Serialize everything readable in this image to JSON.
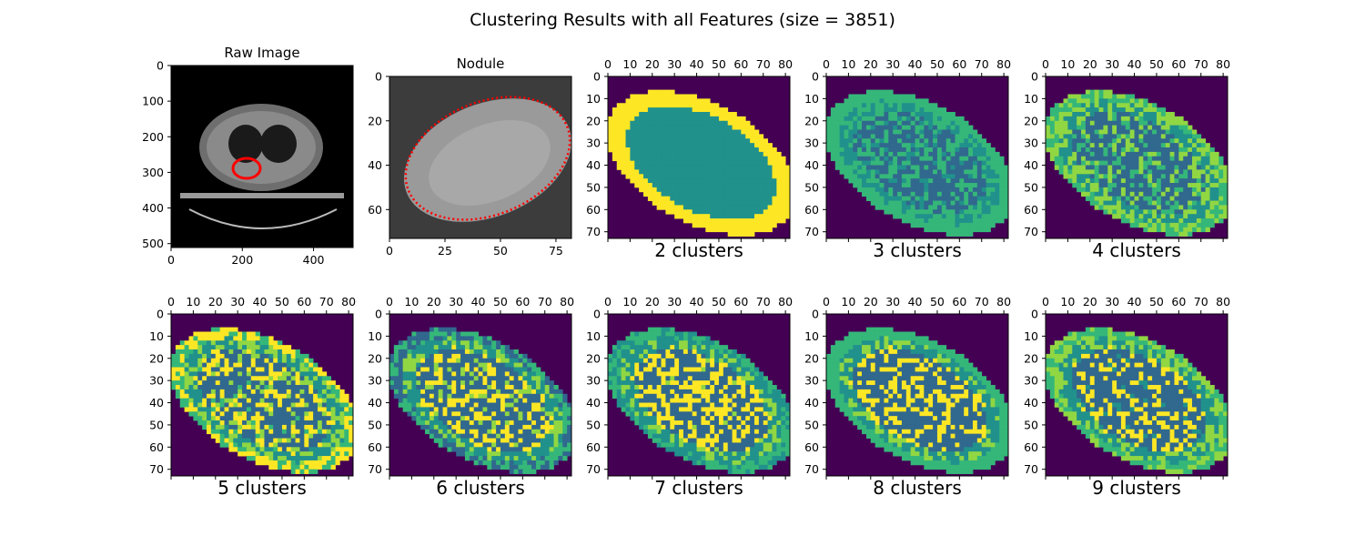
{
  "figure": {
    "title": "Clustering Results with all Features (size = 3851)"
  },
  "colors": {
    "viridis": [
      "#440154",
      "#31688e",
      "#21918c",
      "#35b779",
      "#90d743",
      "#fde725"
    ],
    "background": "#440154",
    "contour": "#ff0000",
    "ct_background": "#000000"
  },
  "chart_data": [
    {
      "type": "heatmap",
      "title": "Raw Image",
      "content": "grayscale chest CT slice with red nodule outline",
      "xticks": [
        "0",
        "200",
        "400"
      ],
      "yticks": [
        "0",
        "100",
        "200",
        "300",
        "400",
        "500"
      ],
      "xlim": [
        0,
        511
      ],
      "ylim": [
        511,
        0
      ],
      "xaxis_position": "bottom"
    },
    {
      "type": "heatmap",
      "title": "Nodule",
      "content": "grayscale nodule crop with red dotted contour",
      "xticks": [
        "0",
        "25",
        "50",
        "75"
      ],
      "yticks": [
        "0",
        "20",
        "40",
        "60"
      ],
      "xlim": [
        0,
        82
      ],
      "ylim": [
        73,
        0
      ],
      "xaxis_position": "bottom"
    },
    {
      "type": "heatmap",
      "xlabel": "2 clusters",
      "n_clusters": 2,
      "xticks": [
        "0",
        "10",
        "20",
        "30",
        "40",
        "50",
        "60",
        "70",
        "80"
      ],
      "yticks": [
        "0",
        "10",
        "20",
        "30",
        "40",
        "50",
        "60",
        "70"
      ],
      "xlim": [
        0,
        82
      ],
      "ylim": [
        73,
        0
      ],
      "xaxis_position": "top"
    },
    {
      "type": "heatmap",
      "xlabel": "3 clusters",
      "n_clusters": 3,
      "xticks": [
        "0",
        "10",
        "20",
        "30",
        "40",
        "50",
        "60",
        "70",
        "80"
      ],
      "yticks": [
        "0",
        "10",
        "20",
        "30",
        "40",
        "50",
        "60",
        "70"
      ],
      "xlim": [
        0,
        82
      ],
      "ylim": [
        73,
        0
      ],
      "xaxis_position": "top"
    },
    {
      "type": "heatmap",
      "xlabel": "4 clusters",
      "n_clusters": 4,
      "xticks": [
        "0",
        "10",
        "20",
        "30",
        "40",
        "50",
        "60",
        "70",
        "80"
      ],
      "yticks": [
        "0",
        "10",
        "20",
        "30",
        "40",
        "50",
        "60",
        "70"
      ],
      "xlim": [
        0,
        82
      ],
      "ylim": [
        73,
        0
      ],
      "xaxis_position": "top"
    },
    {
      "type": "heatmap",
      "xlabel": "5 clusters",
      "n_clusters": 5,
      "xticks": [
        "0",
        "10",
        "20",
        "30",
        "40",
        "50",
        "60",
        "70",
        "80"
      ],
      "yticks": [
        "0",
        "10",
        "20",
        "30",
        "40",
        "50",
        "60",
        "70"
      ],
      "xlim": [
        0,
        82
      ],
      "ylim": [
        73,
        0
      ],
      "xaxis_position": "top"
    },
    {
      "type": "heatmap",
      "xlabel": "6 clusters",
      "n_clusters": 6,
      "xticks": [
        "0",
        "10",
        "20",
        "30",
        "40",
        "50",
        "60",
        "70",
        "80"
      ],
      "yticks": [
        "0",
        "10",
        "20",
        "30",
        "40",
        "50",
        "60",
        "70"
      ],
      "xlim": [
        0,
        82
      ],
      "ylim": [
        73,
        0
      ],
      "xaxis_position": "top"
    },
    {
      "type": "heatmap",
      "xlabel": "7 clusters",
      "n_clusters": 7,
      "xticks": [
        "0",
        "10",
        "20",
        "30",
        "40",
        "50",
        "60",
        "70",
        "80"
      ],
      "yticks": [
        "0",
        "10",
        "20",
        "30",
        "40",
        "50",
        "60",
        "70"
      ],
      "xlim": [
        0,
        82
      ],
      "ylim": [
        73,
        0
      ],
      "xaxis_position": "top"
    },
    {
      "type": "heatmap",
      "xlabel": "8 clusters",
      "n_clusters": 8,
      "xticks": [
        "0",
        "10",
        "20",
        "30",
        "40",
        "50",
        "60",
        "70",
        "80"
      ],
      "yticks": [
        "0",
        "10",
        "20",
        "30",
        "40",
        "50",
        "60",
        "70"
      ],
      "xlim": [
        0,
        82
      ],
      "ylim": [
        73,
        0
      ],
      "xaxis_position": "top"
    },
    {
      "type": "heatmap",
      "xlabel": "9 clusters",
      "n_clusters": 9,
      "xticks": [
        "0",
        "10",
        "20",
        "30",
        "40",
        "50",
        "60",
        "70",
        "80"
      ],
      "yticks": [
        "0",
        "10",
        "20",
        "30",
        "40",
        "50",
        "60",
        "70"
      ],
      "xlim": [
        0,
        82
      ],
      "ylim": [
        73,
        0
      ],
      "xaxis_position": "top"
    }
  ]
}
